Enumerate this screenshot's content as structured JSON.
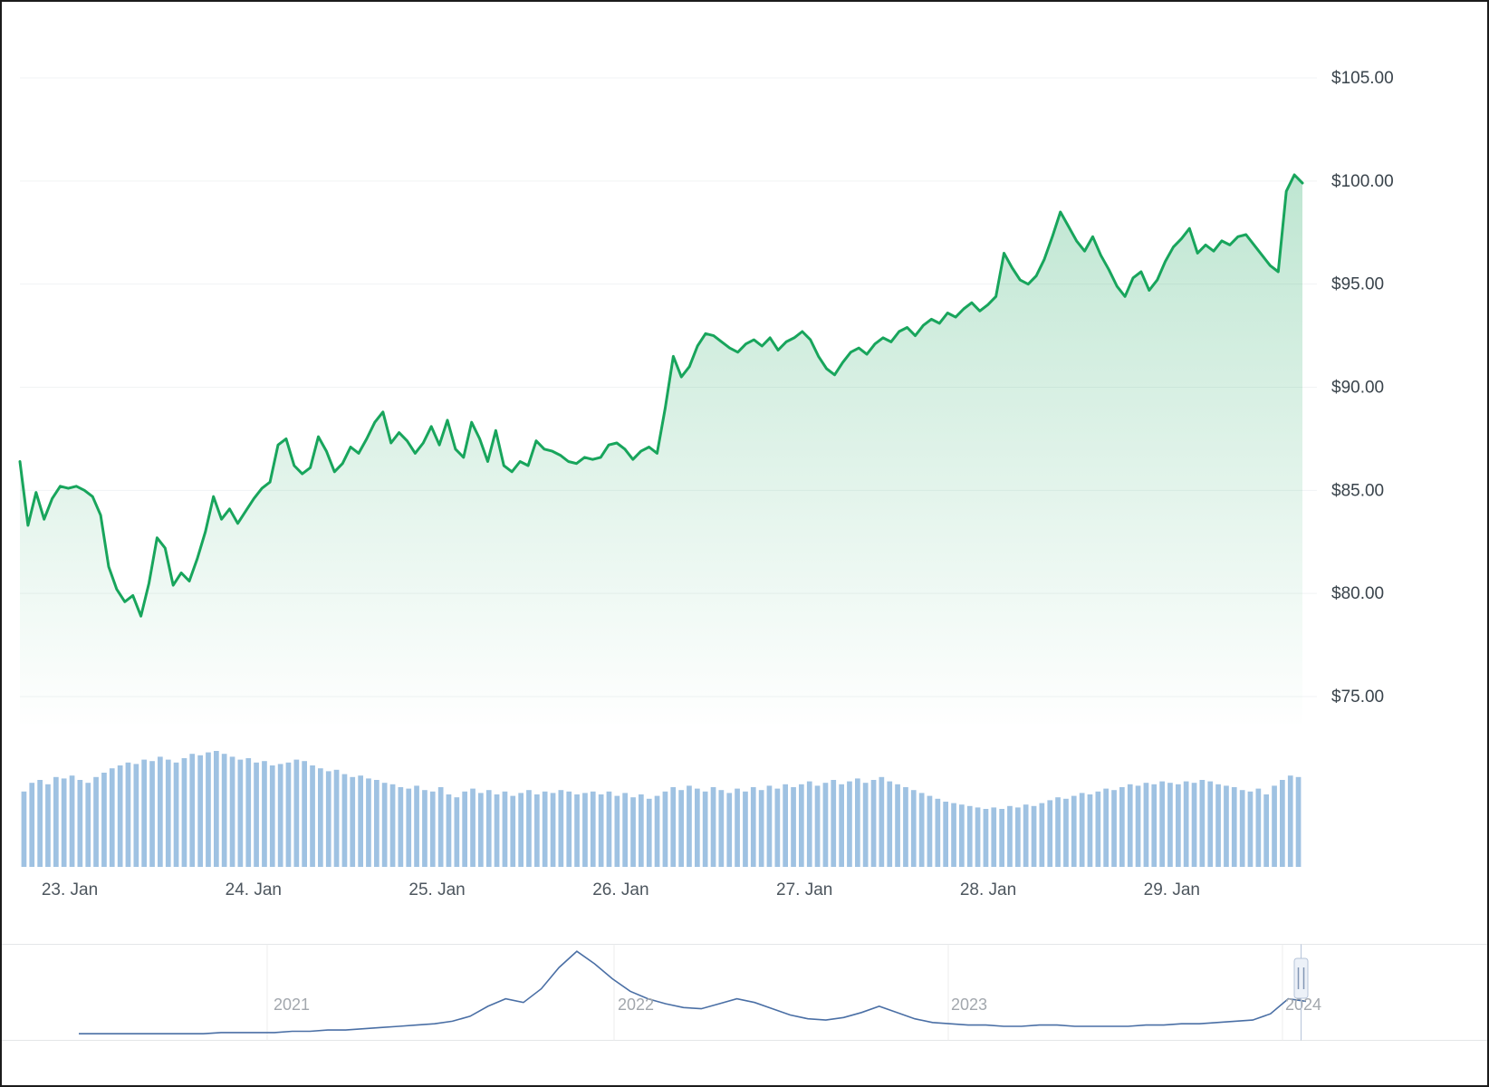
{
  "chart_data": [
    {
      "type": "area",
      "name": "price-series",
      "title": "",
      "xlabel": "",
      "ylabel": "",
      "x_labels": [
        "23. Jan",
        "24. Jan",
        "25. Jan",
        "26. Jan",
        "27. Jan",
        "28. Jan",
        "29. Jan"
      ],
      "y_tick_labels": [
        "$105.00",
        "$100.00",
        "$95.00",
        "$90.00",
        "$85.00",
        "$80.00",
        "$75.00"
      ],
      "y_tick_values": [
        105,
        100,
        95,
        90,
        85,
        80,
        75
      ],
      "ylim": [
        75,
        105
      ],
      "grid": true,
      "legend": "none",
      "values": [
        86.4,
        83.3,
        84.9,
        83.6,
        84.6,
        85.2,
        85.1,
        85.2,
        85.0,
        84.7,
        83.8,
        81.3,
        80.2,
        79.6,
        79.9,
        78.9,
        80.5,
        82.7,
        82.2,
        80.4,
        81.0,
        80.6,
        81.7,
        83.0,
        84.7,
        83.6,
        84.1,
        83.4,
        84.0,
        84.6,
        85.1,
        85.4,
        87.2,
        87.5,
        86.2,
        85.8,
        86.1,
        87.6,
        86.9,
        85.9,
        86.3,
        87.1,
        86.8,
        87.5,
        88.3,
        88.8,
        87.3,
        87.8,
        87.4,
        86.8,
        87.3,
        88.1,
        87.2,
        88.4,
        87.0,
        86.6,
        88.3,
        87.5,
        86.4,
        87.9,
        86.2,
        85.9,
        86.4,
        86.2,
        87.4,
        87.0,
        86.9,
        86.7,
        86.4,
        86.3,
        86.6,
        86.5,
        86.6,
        87.2,
        87.3,
        87.0,
        86.5,
        86.9,
        87.1,
        86.8,
        89.0,
        91.5,
        90.5,
        91.0,
        92.0,
        92.6,
        92.5,
        92.2,
        91.9,
        91.7,
        92.1,
        92.3,
        92.0,
        92.4,
        91.8,
        92.2,
        92.4,
        92.7,
        92.3,
        91.5,
        90.9,
        90.6,
        91.2,
        91.7,
        91.9,
        91.6,
        92.1,
        92.4,
        92.2,
        92.7,
        92.9,
        92.5,
        93.0,
        93.3,
        93.1,
        93.6,
        93.4,
        93.8,
        94.1,
        93.7,
        94.0,
        94.4,
        96.5,
        95.8,
        95.2,
        95.0,
        95.4,
        96.2,
        97.3,
        98.5,
        97.8,
        97.1,
        96.6,
        97.3,
        96.4,
        95.7,
        94.9,
        94.4,
        95.3,
        95.6,
        94.7,
        95.2,
        96.1,
        96.8,
        97.2,
        97.7,
        96.5,
        96.9,
        96.6,
        97.1,
        96.9,
        97.3,
        97.4,
        96.9,
        96.4,
        95.9,
        95.6,
        99.5,
        100.3,
        99.9
      ]
    },
    {
      "type": "bar",
      "name": "volume-series",
      "title": "",
      "ylim": [
        0,
        100
      ],
      "values": [
        52,
        58,
        60,
        57,
        62,
        61,
        63,
        60,
        58,
        62,
        65,
        68,
        70,
        72,
        71,
        74,
        73,
        76,
        74,
        72,
        75,
        78,
        77,
        79,
        80,
        78,
        76,
        74,
        75,
        72,
        73,
        70,
        71,
        72,
        74,
        73,
        70,
        68,
        66,
        67,
        64,
        62,
        63,
        61,
        60,
        58,
        57,
        55,
        54,
        56,
        53,
        52,
        55,
        50,
        48,
        52,
        54,
        51,
        53,
        50,
        52,
        49,
        51,
        53,
        50,
        52,
        51,
        53,
        52,
        50,
        51,
        52,
        50,
        52,
        49,
        51,
        48,
        50,
        47,
        49,
        52,
        55,
        53,
        56,
        54,
        52,
        55,
        53,
        51,
        54,
        52,
        55,
        53,
        56,
        54,
        57,
        55,
        57,
        59,
        56,
        58,
        60,
        57,
        59,
        61,
        58,
        60,
        62,
        59,
        57,
        55,
        53,
        51,
        49,
        47,
        45,
        44,
        43,
        42,
        41,
        40,
        41,
        40,
        42,
        41,
        43,
        42,
        44,
        46,
        48,
        47,
        49,
        51,
        50,
        52,
        54,
        53,
        55,
        57,
        56,
        58,
        57,
        59,
        58,
        57,
        59,
        58,
        60,
        59,
        57,
        56,
        55,
        53,
        52,
        54,
        50,
        56,
        60,
        63,
        62
      ]
    },
    {
      "type": "line",
      "name": "navigator-series",
      "title": "",
      "x_labels": [
        "2021",
        "2022",
        "2023",
        "2024"
      ],
      "ylim": [
        0,
        100
      ],
      "values": [
        2,
        2,
        2,
        2,
        2,
        2,
        2,
        2,
        3,
        3,
        3,
        3,
        4,
        4,
        5,
        5,
        6,
        7,
        8,
        9,
        10,
        12,
        16,
        24,
        30,
        27,
        38,
        55,
        68,
        58,
        46,
        36,
        30,
        26,
        23,
        22,
        26,
        30,
        27,
        22,
        17,
        14,
        13,
        15,
        19,
        24,
        19,
        14,
        11,
        10,
        9,
        9,
        8,
        8,
        9,
        9,
        8,
        8,
        8,
        8,
        9,
        9,
        10,
        10,
        11,
        12,
        13,
        18,
        30,
        28
      ]
    }
  ],
  "colors": {
    "line_color": "#18a55c",
    "area_fill_base": "#18a55c",
    "volume_bar": "#9fc2e2",
    "navigator_line": "#4a6fa5",
    "grid": "#f1f3f4",
    "nav_grid": "#ececec",
    "nav_frame": "#e4e6e8",
    "axis_text": "#39434b",
    "x_axis_text": "#4d565e",
    "nav_text": "#a2a7ad",
    "handle_fill": "#ecf1f8",
    "handle_stroke": "#b6c4d9",
    "handle_grip": "#8297b5"
  }
}
